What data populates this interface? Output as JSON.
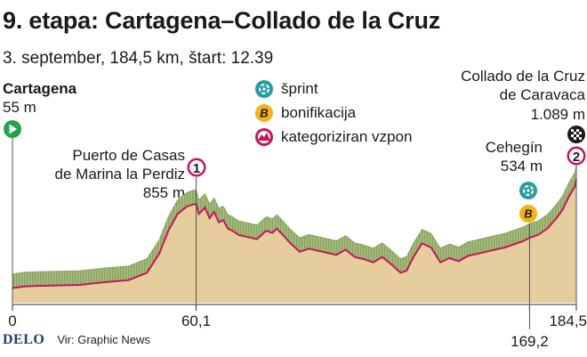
{
  "header": {
    "title": "9. etapa: Cartagena–Collado de la Cruz",
    "subtitle": "3. september, 184,5 km, štart: 12.39"
  },
  "legend": [
    {
      "icon": "sprint-icon",
      "label": "šprint"
    },
    {
      "icon": "bonus-icon",
      "label": "bonifikacija"
    },
    {
      "icon": "climb-icon",
      "label": "kategoriziran vzpon"
    }
  ],
  "places": {
    "start": {
      "name": "Cartagena",
      "elevation": "55 m"
    },
    "climb1": {
      "name_line1": "Puerto de Casas",
      "name_line2": "de Marina la Perdiz",
      "elevation": "855 m",
      "category": "1"
    },
    "cehegin": {
      "name": "Cehegín",
      "elevation": "534 m"
    },
    "finish": {
      "name_line1": "Collado de la Cruz",
      "name_line2": "de Caravaca",
      "elevation": "1.089 m",
      "category": "2"
    }
  },
  "markers": {
    "bonus_letter": "B"
  },
  "chart_data": {
    "type": "area",
    "xlabel": "",
    "ylabel": "",
    "xlim": [
      0,
      184.5
    ],
    "x_ticks": [
      {
        "value": 0,
        "label": "0"
      },
      {
        "value": 60.1,
        "label": "60,1"
      },
      {
        "value": 169.2,
        "label": "169,2"
      },
      {
        "value": 184.5,
        "label": "184,5"
      }
    ],
    "series": [
      {
        "x": [
          0,
          4,
          8,
          15,
          22,
          30,
          38,
          44,
          48,
          51,
          54,
          57,
          59,
          60.1,
          61,
          63,
          64.5,
          66,
          67.5,
          69,
          70.5,
          72,
          74,
          77,
          80,
          83,
          85,
          86.5,
          88.5,
          91,
          94,
          97,
          100,
          103,
          106,
          109,
          112,
          115,
          118,
          121,
          124,
          127,
          129,
          131,
          134,
          137,
          140,
          143,
          146,
          149,
          152,
          155,
          158,
          161,
          164,
          167,
          169.2,
          172,
          175,
          178,
          180,
          182,
          184,
          184.5
        ],
        "y": [
          55,
          70,
          75,
          80,
          85,
          110,
          130,
          200,
          380,
          600,
          760,
          830,
          850,
          855,
          760,
          820,
          720,
          780,
          680,
          700,
          620,
          600,
          560,
          540,
          520,
          600,
          580,
          620,
          560,
          480,
          400,
          430,
          410,
          390,
          370,
          420,
          350,
          330,
          300,
          350,
          280,
          200,
          220,
          340,
          480,
          440,
          300,
          340,
          310,
          360,
          380,
          400,
          420,
          440,
          470,
          500,
          534,
          560,
          620,
          720,
          800,
          920,
          1020,
          1089
        ]
      }
    ],
    "ylim": [
      0,
      1150
    ]
  }
}
